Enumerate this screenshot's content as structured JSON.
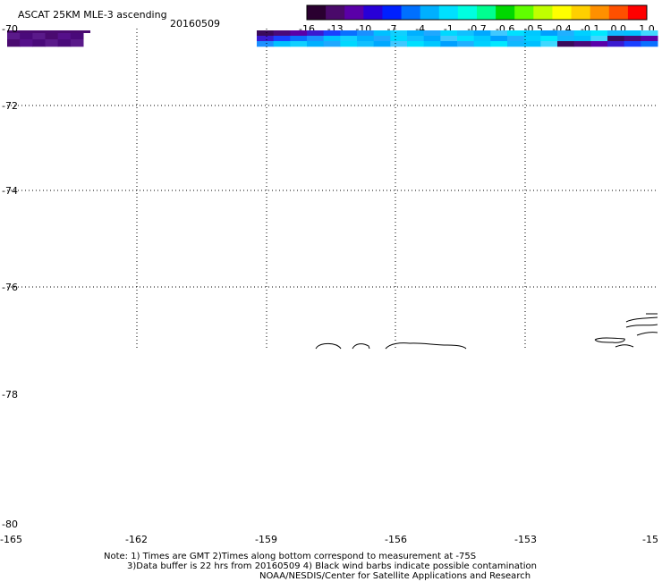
{
  "title": "ASCAT 25KM MLE-3 ascending",
  "date": "20160509",
  "colorbar": {
    "tick_labels": [
      "-16",
      "-13",
      "-10",
      "-7",
      "-4",
      "-1",
      "-0.7",
      "-0.6",
      "-0.5",
      "-0.4",
      "-0.1",
      "0.0",
      "1.0"
    ],
    "colors": [
      "#2a0030",
      "#4a0a6a",
      "#5a00a8",
      "#2800d8",
      "#0020ff",
      "#0070ff",
      "#00b0ff",
      "#00e0ff",
      "#00ffe0",
      "#00ff90",
      "#00d800",
      "#60ff00",
      "#c0ff00",
      "#ffff00",
      "#ffd000",
      "#ff9000",
      "#ff5000",
      "#ff0000"
    ]
  },
  "axes": {
    "x_ticks": [
      "-165",
      "-162",
      "-159",
      "-156",
      "-153",
      "-15"
    ],
    "y_ticks": [
      "-70",
      "-72",
      "-74",
      "-76",
      "-78",
      "-80"
    ]
  },
  "notes": {
    "line1": "Note: 1) Times are GMT 2)Times along bottom correspond to measurement at -75S",
    "line2": "3)Data buffer is 22 hrs from 20160509 4) Black wind barbs indicate possible contamination",
    "line3": "NOAA/NESDIS/Center for Satellite Applications and Research"
  },
  "data_swaths": {
    "left_colors": [
      "#5a1a8a",
      "#4a0a7a",
      "#5a1a8a",
      "#4a0a70",
      "#55108a",
      "#4a0a7a"
    ],
    "right_colors": [
      "#3a0a5a",
      "#4a0a7a",
      "#5a00a8",
      "#3a1ad0",
      "#1a40ff",
      "#0a70ff",
      "#1a90ff",
      "#00c0ff",
      "#10d0ff",
      "#00b0ff",
      "#20a8ff",
      "#00d8ff",
      "#10c0ff",
      "#00a8ff",
      "#40c8ff",
      "#00e0ff",
      "#00c8ff",
      "#00a0ff",
      "#20b0ff",
      "#00d0ff",
      "#00e8ff",
      "#10b8ff",
      "#00c0ff",
      "#40d8ff"
    ]
  }
}
